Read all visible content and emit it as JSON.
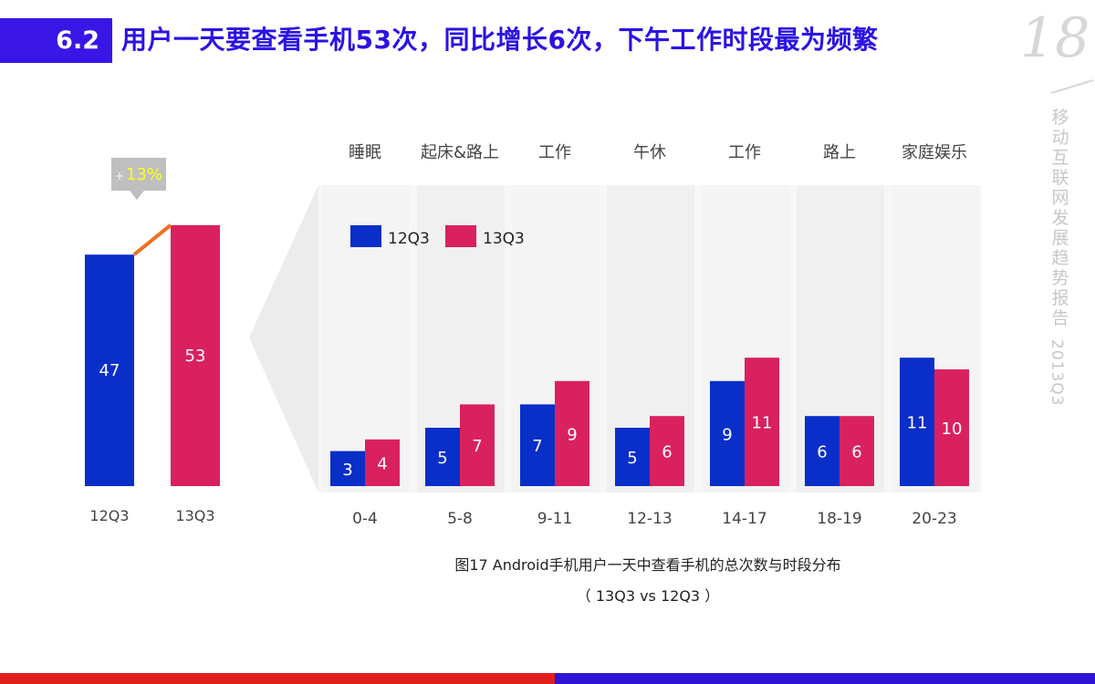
{
  "header": {
    "section_number": "6.2",
    "title": "用户一天要查看手机53次，同比增长6次，下午工作时段最为频繁"
  },
  "sidebar": {
    "page_number": "18",
    "report_title": "移动互联网发展趋势报告",
    "report_period": "2013Q3"
  },
  "caption": {
    "line1": "图17 Android手机用户一天中查看手机的总次数与时段分布",
    "line2": "（ 13Q3 vs 12Q3 ）"
  },
  "chart_data": [
    {
      "type": "bar",
      "title": "",
      "categories": [
        "12Q3",
        "13Q3"
      ],
      "values": [
        47,
        53
      ],
      "colors": [
        "#0a2ec8",
        "#d9215f"
      ],
      "growth_label": {
        "sign": "+",
        "value": "13%"
      },
      "ylim": [
        0,
        60
      ]
    },
    {
      "type": "bar",
      "title": "",
      "activities": [
        "睡眠",
        "起床&路上",
        "工作",
        "午休",
        "工作",
        "路上",
        "家庭娱乐"
      ],
      "categories": [
        "0-4",
        "5-8",
        "9-11",
        "12-13",
        "14-17",
        "18-19",
        "20-23"
      ],
      "series": [
        {
          "name": "12Q3",
          "color": "#0a2ec8",
          "values": [
            3,
            5,
            7,
            5,
            9,
            6,
            11
          ]
        },
        {
          "name": "13Q3",
          "color": "#d9215f",
          "values": [
            4,
            7,
            9,
            6,
            11,
            6,
            10
          ]
        }
      ],
      "legend": "top-left",
      "ylim": [
        0,
        15
      ]
    }
  ]
}
